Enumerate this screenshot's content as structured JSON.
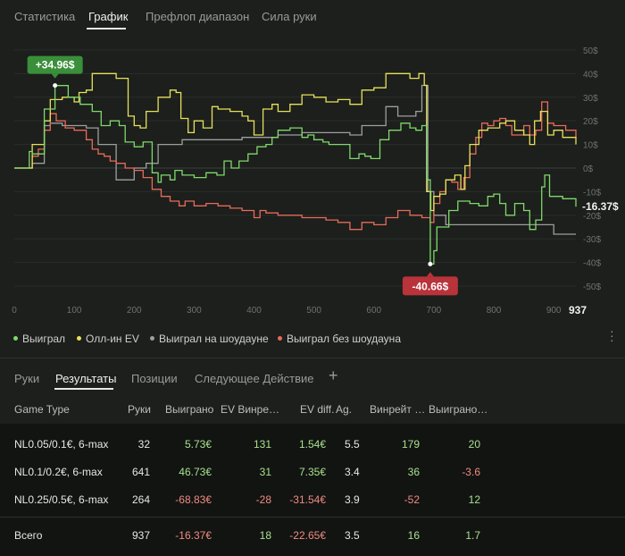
{
  "top_tabs": [
    {
      "label": "Статистика",
      "active": false
    },
    {
      "label": "График",
      "active": true
    },
    {
      "label": "Префлоп диапазон",
      "active": false
    },
    {
      "label": "Сила руки",
      "active": false
    }
  ],
  "colors": {
    "won": "#7fd96a",
    "allin_ev": "#e8e05a",
    "showdown": "#9e9e9e",
    "no_showdown": "#e86a5a",
    "positive": "#a8e08c",
    "negative": "#f08a80",
    "badge_pos": "#3a8f3a",
    "badge_neg": "#b8333a"
  },
  "chart_data": {
    "type": "line",
    "x_range": [
      0,
      937
    ],
    "y_range": [
      -53,
      53
    ],
    "x_ticks": [
      "0",
      "100",
      "200",
      "300",
      "400",
      "500",
      "600",
      "700",
      "800",
      "900"
    ],
    "x_last_label": "937",
    "y_ticks": [
      "50$",
      "40$",
      "30$",
      "20$",
      "10$",
      "0$",
      "-10$",
      "-20$",
      "-30$",
      "-40$",
      "-50$"
    ],
    "y_tick_values": [
      50,
      40,
      30,
      20,
      10,
      0,
      -10,
      -20,
      -30,
      -40,
      -50
    ],
    "max_label": "+34.96$",
    "max_point": [
      68,
      34.96
    ],
    "min_label": "-40.66$",
    "min_point": [
      694,
      -40.66
    ],
    "end_label": "-16.37$",
    "end_value": -16.37,
    "series": [
      {
        "name": "Выиграл",
        "key": "won",
        "points": [
          [
            0,
            0
          ],
          [
            20,
            0
          ],
          [
            25,
            7
          ],
          [
            30,
            6
          ],
          [
            40,
            6
          ],
          [
            50,
            25
          ],
          [
            68,
            34.96
          ],
          [
            90,
            30
          ],
          [
            110,
            27
          ],
          [
            130,
            24
          ],
          [
            145,
            18
          ],
          [
            160,
            20
          ],
          [
            175,
            18
          ],
          [
            185,
            11
          ],
          [
            200,
            9
          ],
          [
            215,
            11
          ],
          [
            230,
            -2
          ],
          [
            240,
            -6
          ],
          [
            245,
            -3
          ],
          [
            260,
            -5
          ],
          [
            268,
            -1
          ],
          [
            280,
            -3
          ],
          [
            300,
            -4
          ],
          [
            320,
            -2
          ],
          [
            338,
            -3
          ],
          [
            350,
            3
          ],
          [
            362,
            0
          ],
          [
            375,
            3
          ],
          [
            390,
            6
          ],
          [
            405,
            9
          ],
          [
            420,
            10
          ],
          [
            430,
            13
          ],
          [
            440,
            16
          ],
          [
            460,
            17
          ],
          [
            480,
            13
          ],
          [
            490,
            14
          ],
          [
            500,
            12
          ],
          [
            515,
            11
          ],
          [
            525,
            10
          ],
          [
            540,
            10
          ],
          [
            560,
            4
          ],
          [
            575,
            6
          ],
          [
            585,
            5
          ],
          [
            595,
            4
          ],
          [
            610,
            12
          ],
          [
            625,
            16
          ],
          [
            645,
            19
          ],
          [
            660,
            17
          ],
          [
            670,
            16
          ],
          [
            680,
            18
          ],
          [
            688,
            -5
          ],
          [
            694,
            -40.66
          ],
          [
            700,
            -35
          ],
          [
            705,
            -25
          ],
          [
            715,
            -25
          ],
          [
            725,
            -18
          ],
          [
            740,
            -14
          ],
          [
            760,
            -15
          ],
          [
            775,
            -16
          ],
          [
            790,
            -12
          ],
          [
            800,
            -11
          ],
          [
            810,
            -15
          ],
          [
            820,
            -20
          ],
          [
            835,
            -15
          ],
          [
            850,
            -18
          ],
          [
            860,
            -26
          ],
          [
            870,
            -22
          ],
          [
            880,
            -8
          ],
          [
            885,
            -3
          ],
          [
            893,
            -12
          ],
          [
            900,
            -12
          ],
          [
            915,
            -13
          ],
          [
            937,
            -16.37
          ]
        ]
      },
      {
        "name": "Олл-ин EV",
        "key": "allin_ev",
        "points": [
          [
            0,
            0
          ],
          [
            20,
            0
          ],
          [
            30,
            10
          ],
          [
            40,
            10
          ],
          [
            50,
            20
          ],
          [
            60,
            29
          ],
          [
            80,
            30
          ],
          [
            100,
            28
          ],
          [
            108,
            32
          ],
          [
            120,
            33
          ],
          [
            130,
            40
          ],
          [
            150,
            40
          ],
          [
            170,
            38
          ],
          [
            183,
            38
          ],
          [
            190,
            22
          ],
          [
            200,
            18
          ],
          [
            210,
            17
          ],
          [
            220,
            24
          ],
          [
            240,
            30
          ],
          [
            260,
            33
          ],
          [
            270,
            32
          ],
          [
            278,
            21
          ],
          [
            290,
            15
          ],
          [
            300,
            20
          ],
          [
            315,
            17
          ],
          [
            330,
            26
          ],
          [
            340,
            25
          ],
          [
            360,
            24
          ],
          [
            380,
            22
          ],
          [
            390,
            20
          ],
          [
            400,
            14
          ],
          [
            415,
            25
          ],
          [
            430,
            27
          ],
          [
            440,
            24
          ],
          [
            460,
            27
          ],
          [
            480,
            31
          ],
          [
            500,
            30
          ],
          [
            520,
            28
          ],
          [
            540,
            29
          ],
          [
            560,
            27
          ],
          [
            580,
            33
          ],
          [
            600,
            34
          ],
          [
            620,
            40
          ],
          [
            640,
            40
          ],
          [
            660,
            38
          ],
          [
            675,
            40
          ],
          [
            684,
            35
          ],
          [
            688,
            -10
          ],
          [
            695,
            -18
          ],
          [
            700,
            -12
          ],
          [
            710,
            -11
          ],
          [
            720,
            -5
          ],
          [
            735,
            -3
          ],
          [
            745,
            -9
          ],
          [
            752,
            1
          ],
          [
            760,
            10
          ],
          [
            775,
            16
          ],
          [
            790,
            17
          ],
          [
            810,
            19
          ],
          [
            820,
            20
          ],
          [
            835,
            16
          ],
          [
            850,
            14
          ],
          [
            860,
            10
          ],
          [
            868,
            20
          ],
          [
            878,
            24
          ],
          [
            890,
            14
          ],
          [
            900,
            16
          ],
          [
            915,
            13
          ],
          [
            937,
            10
          ]
        ]
      },
      {
        "name": "Выиграл на шоудауне",
        "key": "showdown",
        "points": [
          [
            0,
            0
          ],
          [
            20,
            0
          ],
          [
            30,
            2
          ],
          [
            40,
            2
          ],
          [
            50,
            18
          ],
          [
            60,
            19
          ],
          [
            80,
            18
          ],
          [
            100,
            18
          ],
          [
            120,
            17
          ],
          [
            140,
            10
          ],
          [
            160,
            10
          ],
          [
            170,
            -5
          ],
          [
            180,
            -5
          ],
          [
            200,
            0
          ],
          [
            220,
            2
          ],
          [
            240,
            10
          ],
          [
            260,
            10
          ],
          [
            280,
            12
          ],
          [
            300,
            12
          ],
          [
            320,
            12
          ],
          [
            340,
            12
          ],
          [
            360,
            12
          ],
          [
            380,
            13
          ],
          [
            400,
            13
          ],
          [
            420,
            13
          ],
          [
            440,
            14
          ],
          [
            460,
            14
          ],
          [
            480,
            15
          ],
          [
            500,
            15
          ],
          [
            520,
            15
          ],
          [
            540,
            15
          ],
          [
            560,
            14
          ],
          [
            580,
            18
          ],
          [
            600,
            18
          ],
          [
            620,
            26
          ],
          [
            640,
            22
          ],
          [
            660,
            22
          ],
          [
            670,
            24
          ],
          [
            680,
            35
          ],
          [
            690,
            -10
          ],
          [
            700,
            -20
          ],
          [
            710,
            -20
          ],
          [
            720,
            -24
          ],
          [
            740,
            -24
          ],
          [
            760,
            -24
          ],
          [
            780,
            -24
          ],
          [
            800,
            -24
          ],
          [
            820,
            -24
          ],
          [
            840,
            -24
          ],
          [
            860,
            -24
          ],
          [
            880,
            -24
          ],
          [
            900,
            -28
          ],
          [
            920,
            -28
          ],
          [
            937,
            -28
          ]
        ]
      },
      {
        "name": "Выиграл без шоудауна",
        "key": "no_showdown",
        "points": [
          [
            0,
            0
          ],
          [
            20,
            0
          ],
          [
            30,
            5
          ],
          [
            40,
            8
          ],
          [
            50,
            16
          ],
          [
            60,
            23
          ],
          [
            70,
            20
          ],
          [
            85,
            17
          ],
          [
            100,
            16
          ],
          [
            110,
            16
          ],
          [
            120,
            12
          ],
          [
            130,
            8
          ],
          [
            140,
            6
          ],
          [
            150,
            5
          ],
          [
            160,
            3
          ],
          [
            170,
            2
          ],
          [
            185,
            0
          ],
          [
            200,
            -1
          ],
          [
            215,
            -4
          ],
          [
            230,
            -9
          ],
          [
            245,
            -12
          ],
          [
            260,
            -14
          ],
          [
            275,
            -16
          ],
          [
            285,
            -14
          ],
          [
            300,
            -16
          ],
          [
            320,
            -15
          ],
          [
            340,
            -16
          ],
          [
            360,
            -17
          ],
          [
            380,
            -18
          ],
          [
            400,
            -21
          ],
          [
            410,
            -18
          ],
          [
            420,
            -19
          ],
          [
            440,
            -20
          ],
          [
            460,
            -20
          ],
          [
            480,
            -21
          ],
          [
            500,
            -21
          ],
          [
            520,
            -22
          ],
          [
            540,
            -23
          ],
          [
            560,
            -26
          ],
          [
            580,
            -23
          ],
          [
            600,
            -24
          ],
          [
            620,
            -21
          ],
          [
            640,
            -18
          ],
          [
            660,
            -20
          ],
          [
            680,
            -21
          ],
          [
            694,
            -23
          ],
          [
            700,
            -15
          ],
          [
            710,
            -10
          ],
          [
            720,
            -5
          ],
          [
            730,
            -6
          ],
          [
            740,
            -9
          ],
          [
            750,
            -4
          ],
          [
            760,
            6
          ],
          [
            770,
            13
          ],
          [
            780,
            19
          ],
          [
            790,
            18
          ],
          [
            800,
            20
          ],
          [
            810,
            21
          ],
          [
            820,
            18
          ],
          [
            830,
            14
          ],
          [
            840,
            14
          ],
          [
            850,
            18
          ],
          [
            860,
            14
          ],
          [
            870,
            16
          ],
          [
            880,
            28
          ],
          [
            890,
            19
          ],
          [
            900,
            18
          ],
          [
            920,
            16
          ],
          [
            937,
            13
          ]
        ]
      }
    ]
  },
  "legend": [
    {
      "label": "Выиграл",
      "key": "won"
    },
    {
      "label": "Олл-ин EV",
      "key": "allin_ev"
    },
    {
      "label": "Выиграл на шоудауне",
      "key": "showdown"
    },
    {
      "label": "Выиграл без шоудауна",
      "key": "no_showdown"
    }
  ],
  "bottom_tabs": [
    {
      "label": "Руки",
      "active": false
    },
    {
      "label": "Результаты",
      "active": true
    },
    {
      "label": "Позиции",
      "active": false
    },
    {
      "label": "Следующее Действие",
      "active": false
    }
  ],
  "add_tab_label": "+",
  "table": {
    "headers": [
      "Game Type",
      "Руки",
      "Выиграно",
      "EV Винре…",
      "EV diff.",
      "Ag.",
      "Винрейт …",
      "Выиграно…"
    ],
    "rows": [
      {
        "cells": [
          "NL0.05/0.1€, 6-max",
          "32",
          "5.73€",
          "131",
          "1.54€",
          "5.5",
          "179",
          "20"
        ],
        "signs": [
          "plain",
          "plain",
          "pos",
          "pos",
          "pos",
          "plain",
          "pos",
          "pos"
        ]
      },
      {
        "cells": [
          "NL0.1/0.2€, 6-max",
          "641",
          "46.73€",
          "31",
          "7.35€",
          "3.4",
          "36",
          "-3.6"
        ],
        "signs": [
          "plain",
          "plain",
          "pos",
          "pos",
          "pos",
          "plain",
          "pos",
          "neg"
        ]
      },
      {
        "cells": [
          "NL0.25/0.5€, 6-max",
          "264",
          "-68.83€",
          "-28",
          "-31.54€",
          "3.9",
          "-52",
          "12"
        ],
        "signs": [
          "plain",
          "plain",
          "neg",
          "neg",
          "neg",
          "plain",
          "neg",
          "pos"
        ]
      }
    ],
    "total": {
      "cells": [
        "Всего",
        "937",
        "-16.37€",
        "18",
        "-22.65€",
        "3.5",
        "16",
        "1.7"
      ],
      "signs": [
        "plain",
        "plain",
        "neg",
        "pos",
        "neg",
        "plain",
        "pos",
        "pos"
      ]
    }
  }
}
